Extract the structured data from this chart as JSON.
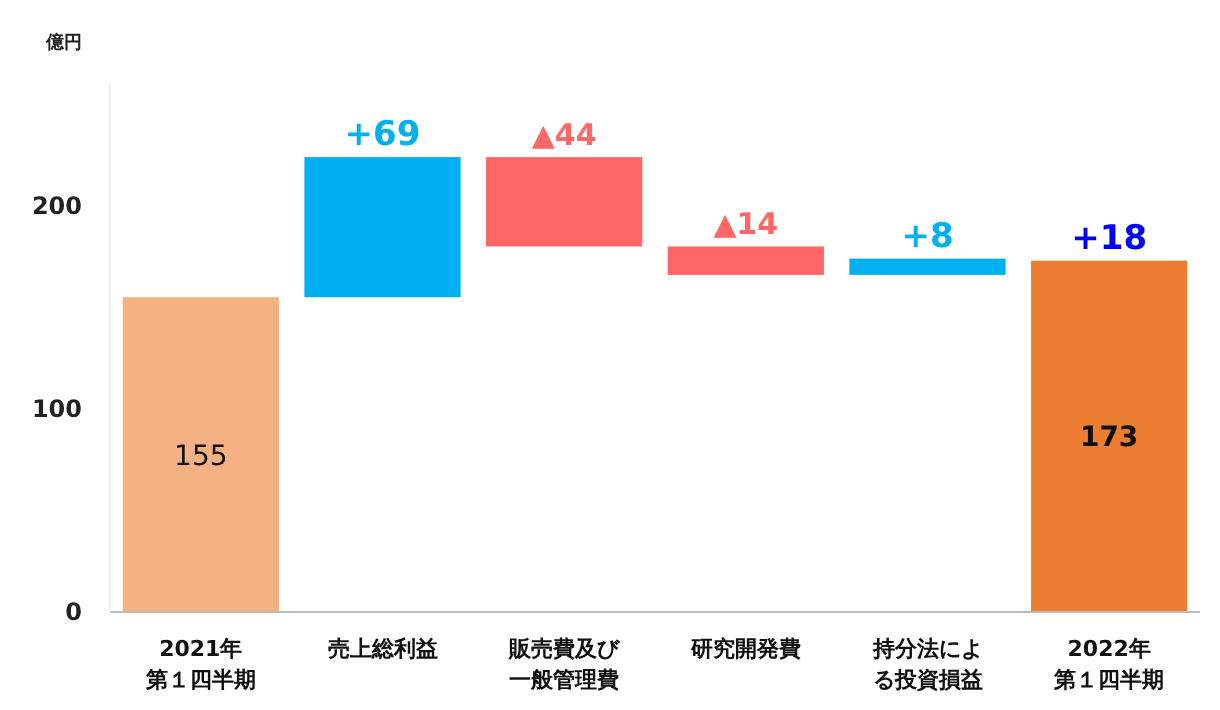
{
  "chart_data": {
    "type": "bar",
    "ylabel": "億円",
    "categories": [
      "2021年第１四半期",
      "売上総利益",
      "販売費及び一般管理費",
      "研究開発費",
      "持分法による投資損益",
      "2022年第１四半期"
    ],
    "values": [
      155,
      69,
      -44,
      -14,
      8,
      173
    ],
    "base": [
      0,
      155,
      224,
      180,
      166,
      0
    ],
    "colors": [
      "#f4b183",
      "#00b0f0",
      "#ff6666",
      "#ff6666",
      "#00b0f0",
      "#ed7d31"
    ],
    "value_labels": [
      "155",
      "+69",
      "▲44",
      "▲14",
      "+8",
      "173"
    ],
    "annotations": [
      {
        "text": "+18",
        "x": "2022年第１四半期",
        "y": 173
      }
    ],
    "ylim": [
      0,
      260
    ],
    "yticks": [
      0,
      100,
      200
    ],
    "grid": false
  }
}
